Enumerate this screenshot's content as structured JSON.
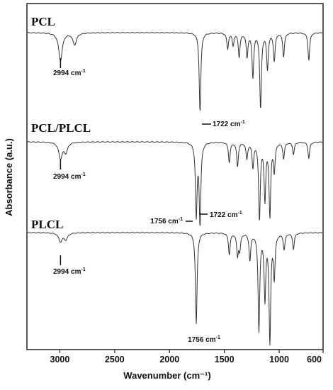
{
  "chart_data": {
    "type": "line",
    "xlabel": "Wavenumber (cm⁻¹)",
    "ylabel": "Absorbance (a.u.)",
    "xlim": [
      3300,
      600
    ],
    "x_reversed": true,
    "x_ticks": [
      3000,
      2500,
      2000,
      1500,
      1000,
      600
    ],
    "x_tick_labels": [
      "3000",
      "2500",
      "2000",
      "1500",
      "1000",
      "600"
    ],
    "y_ticks": false,
    "grid": false,
    "series": [
      {
        "name": "PCL",
        "peaks": [
          {
            "x": 2994,
            "depth": 0.35
          },
          {
            "x": 2865,
            "depth": 0.15
          },
          {
            "x": 1722,
            "depth": 1.0
          },
          {
            "x": 1470,
            "depth": 0.2
          },
          {
            "x": 1420,
            "depth": 0.15
          },
          {
            "x": 1365,
            "depth": 0.3
          },
          {
            "x": 1293,
            "depth": 0.3
          },
          {
            "x": 1240,
            "depth": 0.55
          },
          {
            "x": 1170,
            "depth": 0.95
          },
          {
            "x": 1107,
            "depth": 0.45
          },
          {
            "x": 1045,
            "depth": 0.35
          },
          {
            "x": 960,
            "depth": 0.3
          },
          {
            "x": 730,
            "depth": 0.35
          }
        ]
      },
      {
        "name": "PCL/PLCL",
        "peaks": [
          {
            "x": 2994,
            "depth": 0.2
          },
          {
            "x": 2945,
            "depth": 0.12
          },
          {
            "x": 1756,
            "depth": 0.9
          },
          {
            "x": 1722,
            "depth": 1.0
          },
          {
            "x": 1455,
            "depth": 0.25
          },
          {
            "x": 1380,
            "depth": 0.3
          },
          {
            "x": 1295,
            "depth": 0.2
          },
          {
            "x": 1240,
            "depth": 0.3
          },
          {
            "x": 1180,
            "depth": 0.95
          },
          {
            "x": 1130,
            "depth": 0.7
          },
          {
            "x": 1085,
            "depth": 0.9
          },
          {
            "x": 1045,
            "depth": 0.35
          },
          {
            "x": 960,
            "depth": 0.2
          },
          {
            "x": 870,
            "depth": 0.15
          },
          {
            "x": 730,
            "depth": 0.2
          }
        ]
      },
      {
        "name": "PLCL",
        "peaks": [
          {
            "x": 2994,
            "depth": 0.08
          },
          {
            "x": 2945,
            "depth": 0.06
          },
          {
            "x": 1756,
            "depth": 0.85
          },
          {
            "x": 1455,
            "depth": 0.2
          },
          {
            "x": 1380,
            "depth": 0.2
          },
          {
            "x": 1360,
            "depth": 0.15
          },
          {
            "x": 1267,
            "depth": 0.25
          },
          {
            "x": 1185,
            "depth": 0.9
          },
          {
            "x": 1130,
            "depth": 0.6
          },
          {
            "x": 1085,
            "depth": 1.0
          },
          {
            "x": 1045,
            "depth": 0.4
          },
          {
            "x": 955,
            "depth": 0.15
          },
          {
            "x": 870,
            "depth": 0.15
          }
        ]
      }
    ],
    "annotations": [
      {
        "series": "PCL",
        "x": 2994,
        "text": "2994 cm",
        "sup": "-1"
      },
      {
        "series": "PCL",
        "x": 1722,
        "text": "1722 cm",
        "sup": "-1"
      },
      {
        "series": "PCL/PLCL",
        "x": 2994,
        "text": "2994 cm",
        "sup": "-1"
      },
      {
        "series": "PCL/PLCL",
        "x": 1756,
        "text": "1756 cm",
        "sup": "-1"
      },
      {
        "series": "PCL/PLCL",
        "x": 1722,
        "text": "1722 cm",
        "sup": "-1"
      },
      {
        "series": "PLCL",
        "x": 2994,
        "text": "2994 cm",
        "sup": "-1"
      },
      {
        "series": "PLCL",
        "x": 1756,
        "text": "1756 cm",
        "sup": "-1"
      }
    ],
    "line_color": "#333333"
  }
}
